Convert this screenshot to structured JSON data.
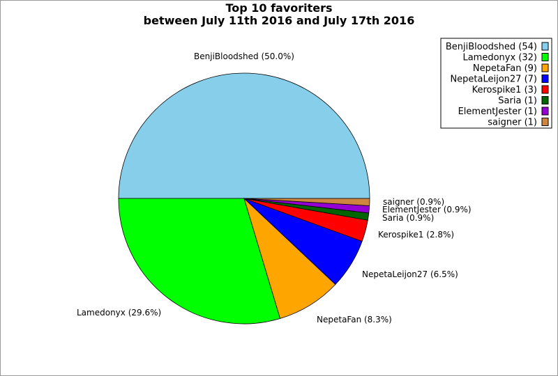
{
  "chart_data": {
    "type": "pie",
    "title": "Top 10 favoriters",
    "subtitle": "between July 11th 2016 and July 17th 2016",
    "legend_position": "top-right",
    "slices": [
      {
        "name": "BenjiBloodshed",
        "value": 54,
        "percent_label": "BenjiBloodshed (50.0%)",
        "legend_label": "BenjiBloodshed (54)",
        "color": "#87ceeb"
      },
      {
        "name": "Lamedonyx",
        "value": 32,
        "percent_label": "Lamedonyx (29.6%)",
        "legend_label": "Lamedonyx (32)",
        "color": "#00ff00"
      },
      {
        "name": "NepetaFan",
        "value": 9,
        "percent_label": "NepetaFan (8.3%)",
        "legend_label": "NepetaFan (9)",
        "color": "#ffa500"
      },
      {
        "name": "NepetaLeijon27",
        "value": 7,
        "percent_label": "NepetaLeijon27 (6.5%)",
        "legend_label": "NepetaLeijon27 (7)",
        "color": "#0000ff"
      },
      {
        "name": "Kerospike1",
        "value": 3,
        "percent_label": "Kerospike1 (2.8%)",
        "legend_label": "Kerospike1 (3)",
        "color": "#ff0000"
      },
      {
        "name": "Saria",
        "value": 1,
        "percent_label": "Saria (0.9%)",
        "legend_label": "Saria (1)",
        "color": "#006400"
      },
      {
        "name": "ElementJester",
        "value": 1,
        "percent_label": "ElementJester (0.9%)",
        "legend_label": "ElementJester (1)",
        "color": "#9400d3"
      },
      {
        "name": "saigner",
        "value": 1,
        "percent_label": "saigner (0.9%)",
        "legend_label": "saigner (1)",
        "color": "#cd853f"
      }
    ]
  }
}
